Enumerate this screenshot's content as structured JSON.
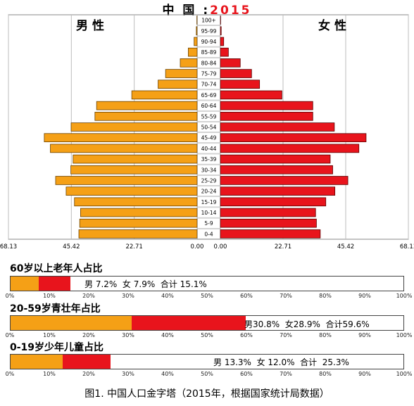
{
  "title": {
    "prefix": "中 国 :",
    "year": "2015"
  },
  "colors": {
    "male": "#f5a016",
    "female": "#e8141c",
    "grid": "#bdbdbd"
  },
  "chart_data": [
    {
      "type": "bar",
      "subtype": "population-pyramid",
      "title": "中 国 : 2015",
      "left_label": "男 性",
      "right_label": "女 性",
      "categories": [
        "0-4",
        "5-9",
        "10-14",
        "15-19",
        "20-24",
        "25-29",
        "30-34",
        "35-39",
        "40-44",
        "45-49",
        "50-54",
        "55-59",
        "60-64",
        "65-69",
        "70-74",
        "75-79",
        "80-84",
        "85-89",
        "90-94",
        "95-99",
        "100+"
      ],
      "series": [
        {
          "name": "男 性",
          "values": [
            42.7,
            42.4,
            42.1,
            44.3,
            47.3,
            51.1,
            45.6,
            44.8,
            53.0,
            55.2,
            45.5,
            36.9,
            36.3,
            23.6,
            14.1,
            11.4,
            6.1,
            3.2,
            1.1,
            0.3,
            0.1
          ]
        },
        {
          "name": "女 性",
          "values": [
            36.2,
            34.8,
            34.5,
            38.2,
            41.5,
            46.2,
            40.7,
            39.8,
            50.2,
            52.8,
            41.3,
            33.5,
            33.5,
            22.3,
            14.2,
            11.3,
            7.2,
            2.9,
            1.2,
            0.3,
            0.1
          ]
        }
      ],
      "xlim": [
        0,
        68.13
      ],
      "xticks": [
        "68.13",
        "45.42",
        "22.71",
        "0.00",
        "0.00",
        "22.71",
        "45.42",
        "68.13"
      ],
      "grid": true
    },
    {
      "type": "bar",
      "stacked": true,
      "title": "60岁以上老年人占比",
      "series": [
        {
          "values": [
            7.2
          ]
        },
        {
          "values": [
            7.9
          ]
        }
      ],
      "total": 15.1,
      "text": "男 7.2%  女 7.9%  合计 15.1%",
      "xlim": [
        0,
        100
      ]
    },
    {
      "type": "bar",
      "stacked": true,
      "title": "20-59岁青壮年占比",
      "series": [
        {
          "values": [
            30.8
          ]
        },
        {
          "values": [
            28.9
          ]
        }
      ],
      "total": 59.6,
      "text": "男30.8%  女28.9%  合计59.6%",
      "xlim": [
        0,
        100
      ]
    },
    {
      "type": "bar",
      "stacked": true,
      "title": "0-19岁少年儿童占比",
      "series": [
        {
          "values": [
            13.3
          ]
        },
        {
          "values": [
            12.0
          ]
        }
      ],
      "total": 25.3,
      "text": "男 13.3%  女 12.0%  合计  25.3%",
      "xlim": [
        0,
        100
      ]
    }
  ],
  "pct_ticks": [
    "0%",
    "10%",
    "20%",
    "30%",
    "40%",
    "50%",
    "60%",
    "70%",
    "80%",
    "90%",
    "100%"
  ],
  "caption": "图1. 中国人口金字塔（2015年，根据国家统计局数据）"
}
